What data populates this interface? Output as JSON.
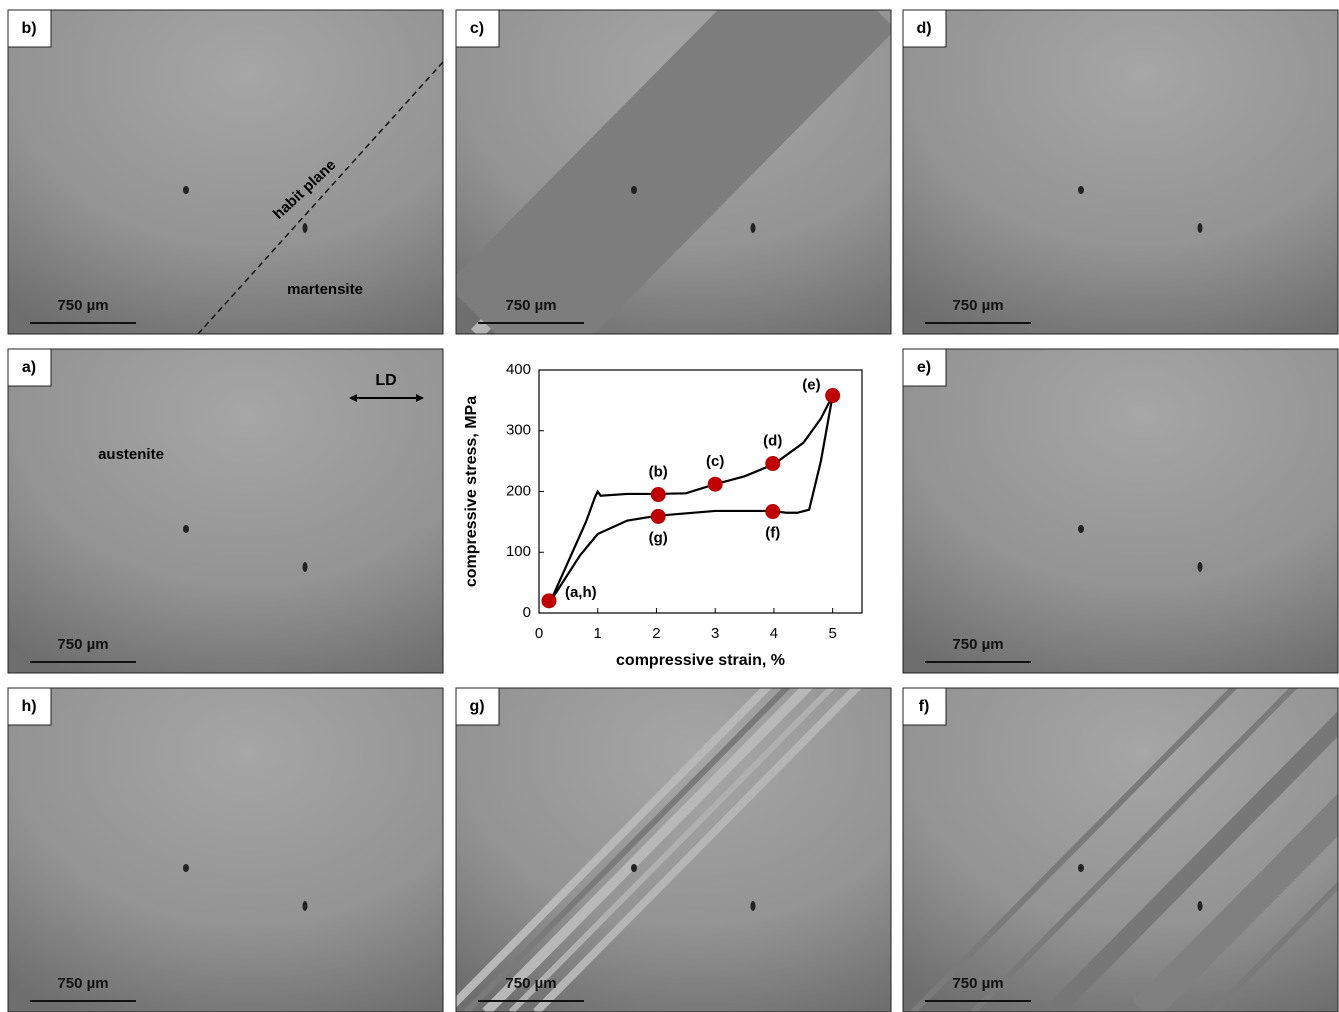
{
  "chart_data": {
    "type": "line",
    "xlabel": "compressive strain, %",
    "ylabel": "compressive stress, MPa",
    "xlim": [
      0,
      5.5
    ],
    "xticks": [
      0,
      1,
      2,
      3,
      4,
      5
    ],
    "ylim": [
      0,
      400
    ],
    "yticks": [
      0,
      100,
      200,
      300,
      400
    ],
    "series": [
      {
        "color": "#000000",
        "x": [
          0.2,
          0.5,
          0.8,
          0.95,
          1.0,
          1.05,
          1.5,
          2.0,
          2.5,
          3.0,
          3.5,
          4.0,
          4.5,
          4.8,
          5.0
        ],
        "values": [
          20,
          85,
          150,
          190,
          200,
          193,
          196,
          196,
          197,
          212,
          225,
          245,
          280,
          320,
          358
        ]
      },
      {
        "color": "#000000",
        "x": [
          5.0,
          4.8,
          4.6,
          4.4,
          4.2,
          4.0,
          3.0,
          2.0,
          1.5,
          1.0,
          0.7,
          0.4,
          0.2
        ],
        "values": [
          358,
          250,
          170,
          165,
          165,
          168,
          168,
          160,
          152,
          130,
          95,
          50,
          20
        ]
      }
    ],
    "points": {
      "color": "#c00000",
      "x": [
        0.17,
        2.03,
        3.0,
        3.98,
        5.0,
        3.98,
        2.03
      ],
      "values": [
        20,
        195,
        212,
        246,
        358,
        167,
        159
      ],
      "labels": [
        "(a,h)",
        "(b)",
        "(c)",
        "(d)",
        "(e)",
        "(f)",
        "(g)"
      ]
    }
  },
  "panels": [
    {
      "label": "b)",
      "scale": "750 µm",
      "annotations": [
        "habit plane",
        "martensite"
      ]
    },
    {
      "label": "c)",
      "scale": "750 µm",
      "annotations": []
    },
    {
      "label": "d)",
      "scale": "750 µm",
      "annotations": []
    },
    {
      "label": "a)",
      "scale": "750 µm",
      "annotations": [
        "austenite",
        "LD"
      ]
    },
    {
      "label": "e)",
      "scale": "750 µm",
      "annotations": []
    },
    {
      "label": "h)",
      "scale": "750 µm",
      "annotations": []
    },
    {
      "label": "g)",
      "scale": "750 µm",
      "annotations": []
    },
    {
      "label": "f)",
      "scale": "750 µm",
      "annotations": []
    }
  ]
}
